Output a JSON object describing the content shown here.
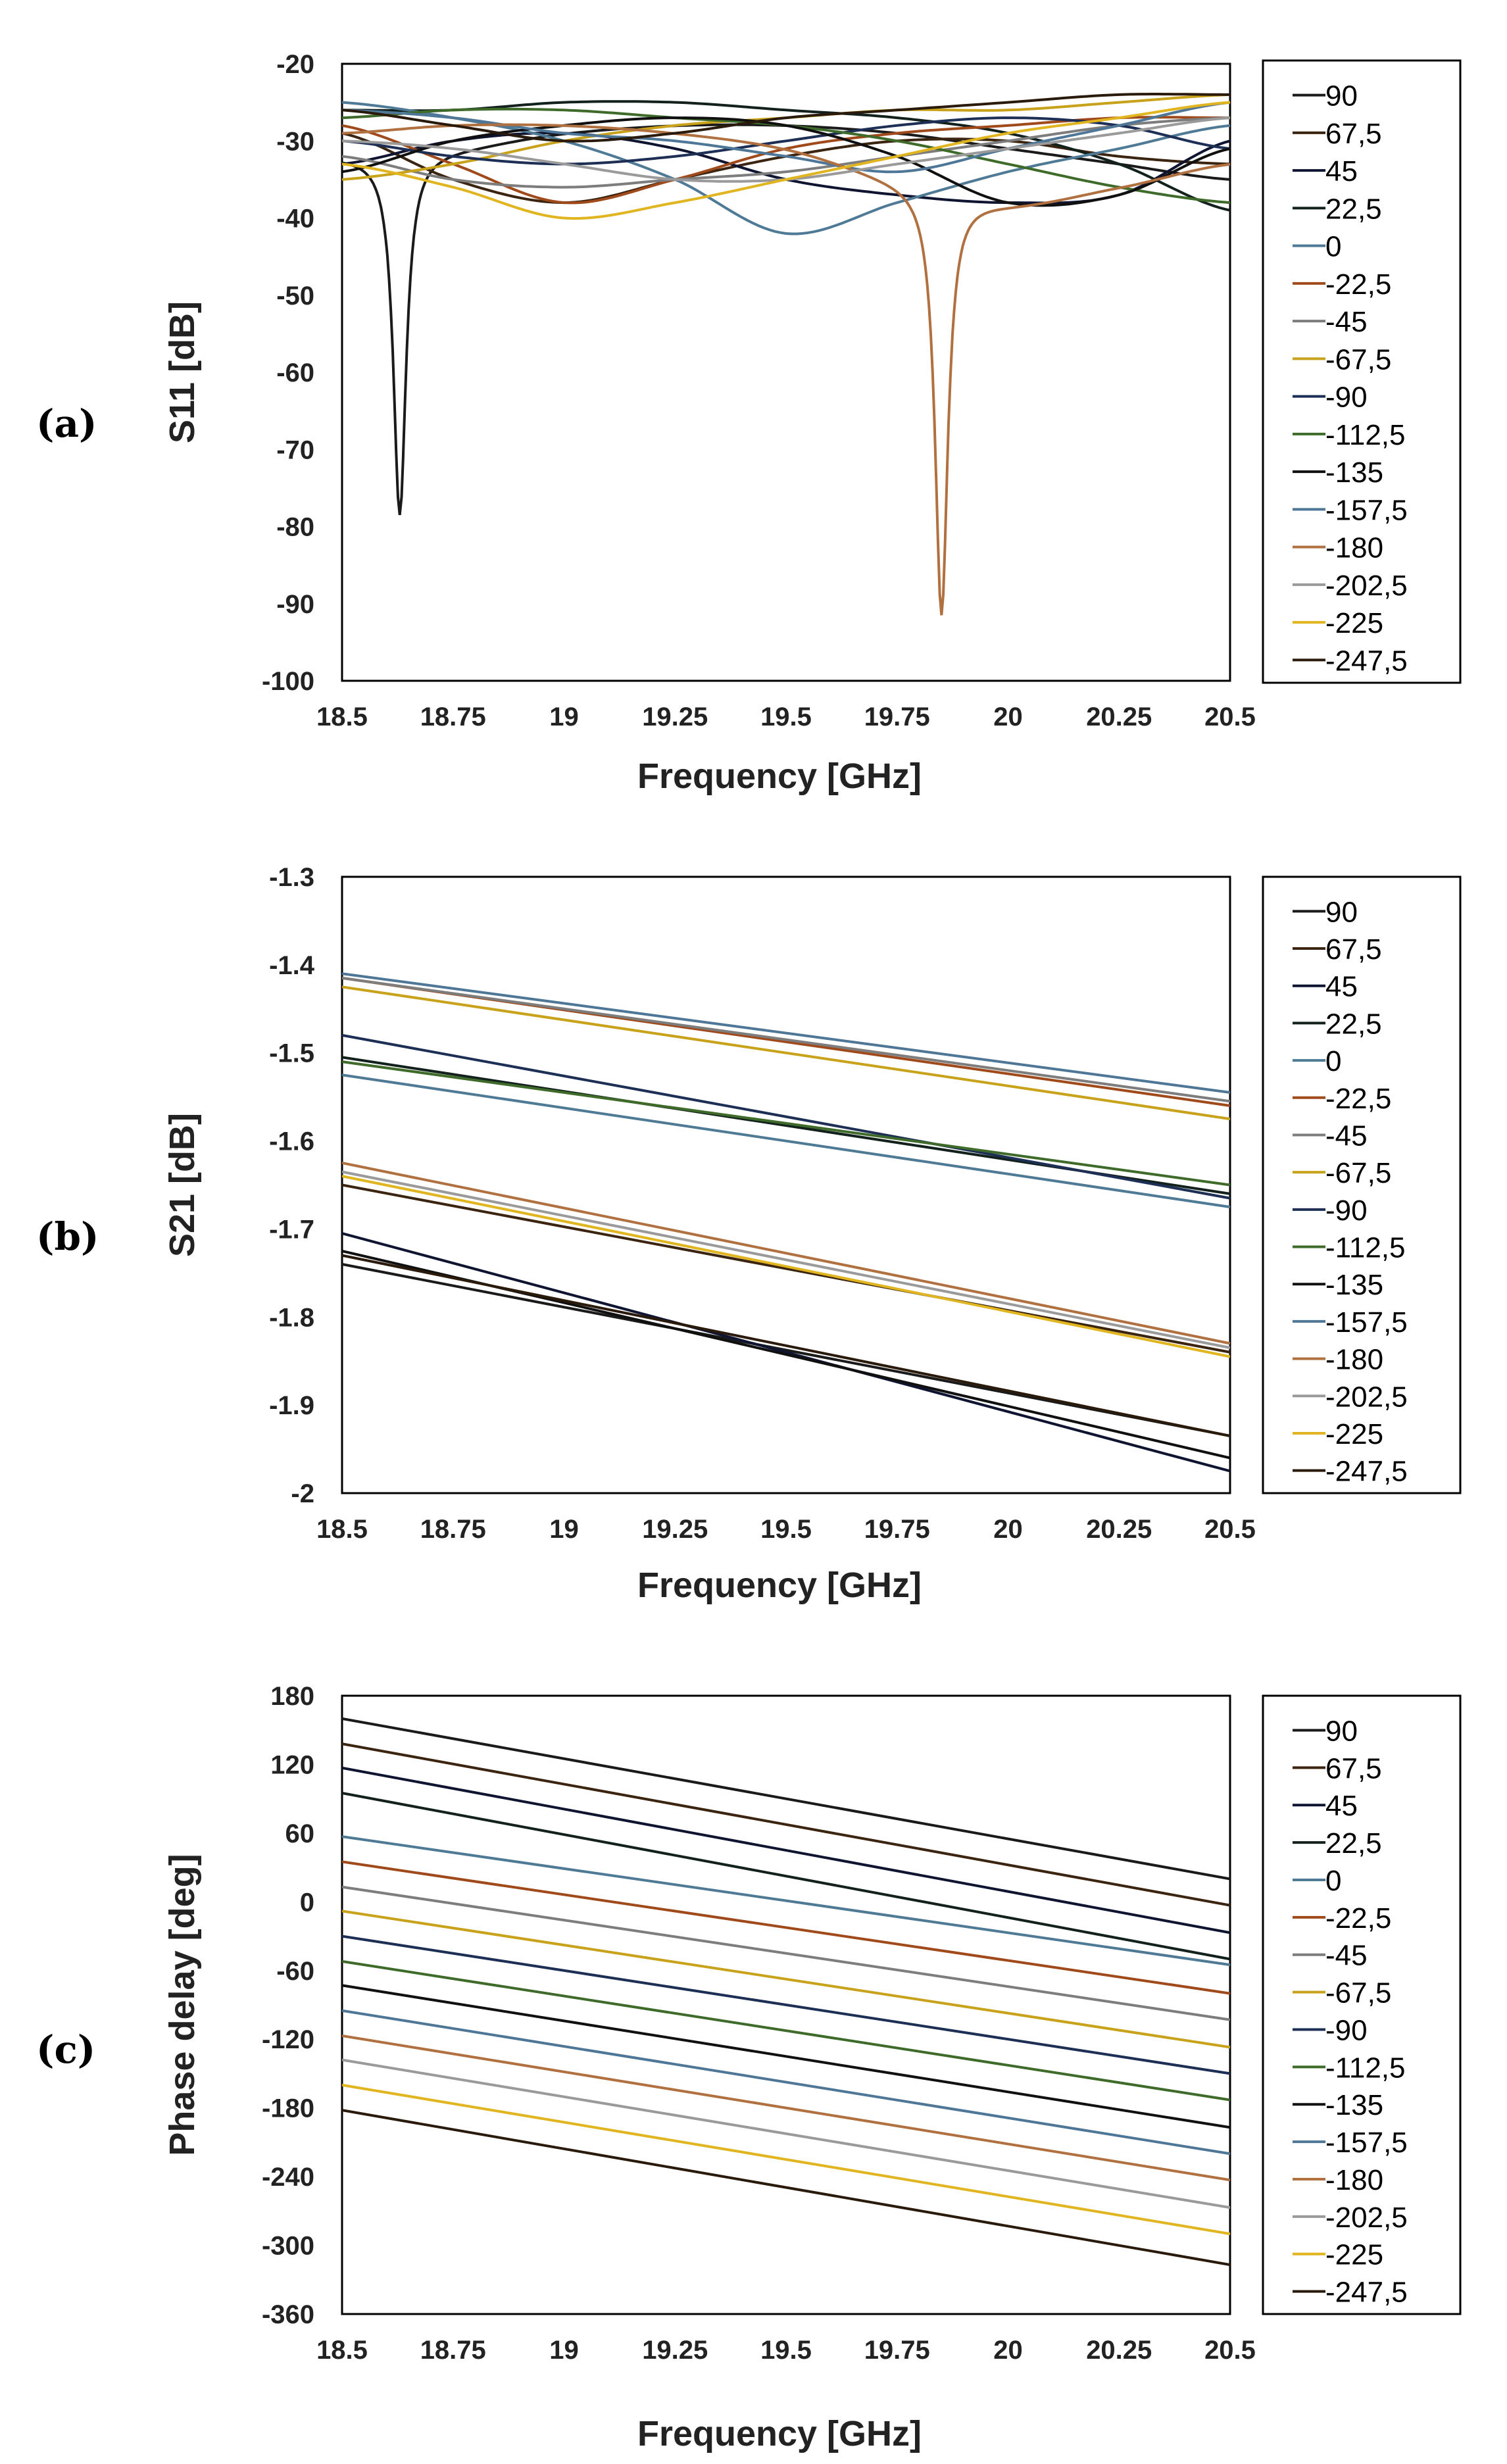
{
  "legend_labels": [
    "90",
    "67,5",
    "45",
    "22,5",
    "0",
    "-22,5",
    "-45",
    "-67,5",
    "-90",
    "-112,5",
    "-135",
    "-157,5",
    "-180",
    "-202,5",
    "-225",
    "-247,5"
  ],
  "series_colors": [
    "#1a1a1a",
    "#3b2410",
    "#0f1530",
    "#13211d",
    "#4f7a96",
    "#a04a1c",
    "#7d7d7d",
    "#c9a21b",
    "#1d2f55",
    "#3f6b2a",
    "#101010",
    "#4e7697",
    "#b07040",
    "#9a9a9a",
    "#e0b520",
    "#2a1a0c"
  ],
  "chart_data": [
    {
      "panel_label": "(a)",
      "type": "line",
      "xlabel": "Frequency [GHz]",
      "ylabel": "S11 [dB]",
      "x_ticks": [
        "18.5",
        "18.75",
        "19",
        "19.25",
        "19.5",
        "19.75",
        "20",
        "20.25",
        "20.5"
      ],
      "y_ticks": [
        "-20",
        "-30",
        "-40",
        "-50",
        "-60",
        "-70",
        "-80",
        "-90",
        "-100"
      ],
      "xlim": [
        18.5,
        20.5
      ],
      "ylim": [
        -100,
        -20
      ],
      "x": [
        18.5,
        18.75,
        19.0,
        19.25,
        19.5,
        19.75,
        20.0,
        20.25,
        20.5
      ],
      "series": [
        {
          "name": "90",
          "values": [
            -32,
            -31,
            -29,
            -28,
            -28,
            -29,
            -31,
            -33,
            -35
          ],
          "dips": [
            [
              18.63,
              -78.5
            ]
          ]
        },
        {
          "name": "67,5",
          "values": [
            -29,
            -35,
            -38,
            -35,
            -32,
            -30,
            -30,
            -32,
            -33
          ]
        },
        {
          "name": "45",
          "values": [
            -33,
            -30,
            -29,
            -31,
            -35,
            -37,
            -38,
            -37,
            -30
          ]
        },
        {
          "name": "22,5",
          "values": [
            -26,
            -26,
            -25,
            -25,
            -26,
            -27,
            -29,
            -33,
            -39
          ]
        },
        {
          "name": "0",
          "values": [
            -25,
            -27,
            -30,
            -35,
            -42,
            -38,
            -34,
            -31,
            -28
          ]
        },
        {
          "name": "-22,5",
          "values": [
            -28,
            -33,
            -38,
            -35,
            -31,
            -29,
            -28,
            -27,
            -27
          ]
        },
        {
          "name": "-45",
          "values": [
            -32,
            -35,
            -36,
            -35,
            -34,
            -32,
            -30,
            -28,
            -27
          ]
        },
        {
          "name": "-67,5",
          "values": [
            -35,
            -33,
            -30,
            -28,
            -27,
            -26,
            -26,
            -25,
            -24
          ]
        },
        {
          "name": "-90",
          "values": [
            -30,
            -32,
            -33,
            -32,
            -30,
            -28,
            -27,
            -28,
            -31
          ]
        },
        {
          "name": "-112,5",
          "values": [
            -27,
            -26,
            -26,
            -27,
            -28,
            -30,
            -33,
            -36,
            -38
          ]
        },
        {
          "name": "-135",
          "values": [
            -34,
            -30,
            -28,
            -27,
            -28,
            -32,
            -38,
            -37,
            -31
          ]
        },
        {
          "name": "-157,5",
          "values": [
            -26,
            -27,
            -29,
            -30,
            -32,
            -34,
            -31,
            -28,
            -25
          ]
        },
        {
          "name": "-180",
          "values": [
            -29,
            -28,
            -28,
            -29,
            -31,
            -35,
            -38,
            -36,
            -33
          ],
          "dips": [
            [
              19.85,
              -91.5
            ]
          ]
        },
        {
          "name": "-202,5",
          "values": [
            -30,
            -31,
            -33,
            -35,
            -35,
            -33,
            -31,
            -29,
            -27
          ]
        },
        {
          "name": "-225",
          "values": [
            -33,
            -36,
            -40,
            -38,
            -35,
            -32,
            -29,
            -27,
            -25
          ]
        },
        {
          "name": "-247,5",
          "values": [
            -26,
            -28,
            -30,
            -29,
            -27,
            -26,
            -25,
            -24,
            -24
          ]
        }
      ]
    },
    {
      "panel_label": "(b)",
      "type": "line",
      "xlabel": "Frequency [GHz]",
      "ylabel": "S21 [dB]",
      "x_ticks": [
        "18.5",
        "18.75",
        "19",
        "19.25",
        "19.5",
        "19.75",
        "20",
        "20.25",
        "20.5"
      ],
      "y_ticks": [
        "-1.3",
        "-1.4",
        "-1.5",
        "-1.6",
        "-1.7",
        "-1.8",
        "-1.9",
        "-2"
      ],
      "xlim": [
        18.5,
        20.5
      ],
      "ylim": [
        -2,
        -1.3
      ],
      "x": [
        18.5,
        20.5
      ],
      "series": [
        {
          "name": "90",
          "values": [
            -1.74,
            -1.935
          ]
        },
        {
          "name": "67,5",
          "values": [
            -1.65,
            -1.84
          ]
        },
        {
          "name": "45",
          "values": [
            -1.705,
            -1.975
          ]
        },
        {
          "name": "22,5",
          "values": [
            -1.505,
            -1.66
          ]
        },
        {
          "name": "0",
          "values": [
            -1.525,
            -1.675
          ]
        },
        {
          "name": "-22,5",
          "values": [
            -1.415,
            -1.56
          ]
        },
        {
          "name": "-45",
          "values": [
            -1.415,
            -1.555
          ]
        },
        {
          "name": "-67,5",
          "values": [
            -1.425,
            -1.575
          ]
        },
        {
          "name": "-90",
          "values": [
            -1.48,
            -1.665
          ]
        },
        {
          "name": "-112,5",
          "values": [
            -1.51,
            -1.65
          ]
        },
        {
          "name": "-135",
          "values": [
            -1.725,
            -1.96
          ]
        },
        {
          "name": "-157,5",
          "values": [
            -1.41,
            -1.545
          ]
        },
        {
          "name": "-180",
          "values": [
            -1.625,
            -1.83
          ]
        },
        {
          "name": "-202,5",
          "values": [
            -1.635,
            -1.835
          ]
        },
        {
          "name": "-225",
          "values": [
            -1.64,
            -1.845
          ]
        },
        {
          "name": "-247,5",
          "values": [
            -1.73,
            -1.935
          ]
        }
      ]
    },
    {
      "panel_label": "(c)",
      "type": "line",
      "xlabel": "Frequency [GHz]",
      "ylabel": "Phase delay [deg]",
      "x_ticks": [
        "18.5",
        "18.75",
        "19",
        "19.25",
        "19.5",
        "19.75",
        "20",
        "20.25",
        "20.5"
      ],
      "y_ticks": [
        "180",
        "120",
        "60",
        "0",
        "-60",
        "-120",
        "-180",
        "-240",
        "-300",
        "-360"
      ],
      "xlim": [
        18.5,
        20.5
      ],
      "ylim": [
        -360,
        180
      ],
      "x": [
        18.5,
        20.5
      ],
      "series": [
        {
          "name": "90",
          "values": [
            160,
            20
          ]
        },
        {
          "name": "67,5",
          "values": [
            138,
            -3
          ]
        },
        {
          "name": "45",
          "values": [
            117,
            -27
          ]
        },
        {
          "name": "22,5",
          "values": [
            95,
            -50
          ]
        },
        {
          "name": "0",
          "values": [
            57,
            -55
          ]
        },
        {
          "name": "-22,5",
          "values": [
            35,
            -80
          ]
        },
        {
          "name": "-45",
          "values": [
            13,
            -103
          ]
        },
        {
          "name": "-67,5",
          "values": [
            -8,
            -127
          ]
        },
        {
          "name": "-90",
          "values": [
            -30,
            -150
          ]
        },
        {
          "name": "-112,5",
          "values": [
            -52,
            -173
          ]
        },
        {
          "name": "-135",
          "values": [
            -73,
            -197
          ]
        },
        {
          "name": "-157,5",
          "values": [
            -95,
            -220
          ]
        },
        {
          "name": "-180",
          "values": [
            -117,
            -243
          ]
        },
        {
          "name": "-202,5",
          "values": [
            -138,
            -267
          ]
        },
        {
          "name": "-225",
          "values": [
            -160,
            -290
          ]
        },
        {
          "name": "-247,5",
          "values": [
            -182,
            -317
          ]
        }
      ]
    }
  ]
}
